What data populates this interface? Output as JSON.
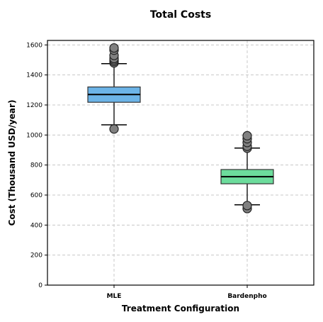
{
  "chart_data": {
    "type": "box",
    "title": "Total Costs",
    "xlabel": "Treatment Configuration",
    "ylabel": "Cost (Thousand USD/year)",
    "ylim": [
      0,
      1630
    ],
    "yticks": [
      0,
      200,
      400,
      600,
      800,
      1000,
      1200,
      1400,
      1600
    ],
    "grid": true,
    "categories": [
      "MLE",
      "Bardenpho"
    ],
    "boxes": [
      {
        "category": "MLE",
        "color": "#6cb4e8",
        "whisker_low": 1068,
        "q1": 1218,
        "median": 1270,
        "q3": 1320,
        "whisker_high": 1475,
        "outliers": [
          1040,
          1480,
          1490,
          1500,
          1510,
          1530,
          1565,
          1580
        ]
      },
      {
        "category": "Bardenpho",
        "color": "#6cdc9c",
        "whisker_low": 535,
        "q1": 675,
        "median": 722,
        "q3": 770,
        "whisker_high": 913,
        "outliers": [
          510,
          530,
          912,
          925,
          950,
          975,
          995
        ]
      }
    ]
  }
}
